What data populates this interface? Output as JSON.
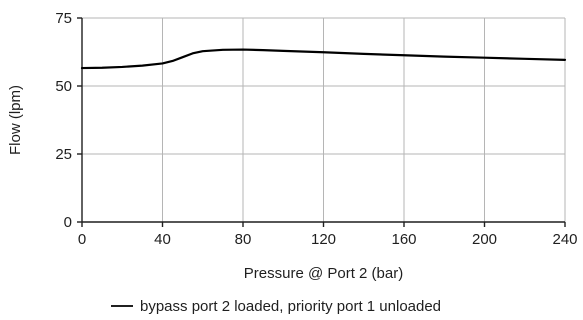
{
  "chart_data": {
    "type": "line",
    "title": "",
    "xlabel": "Pressure @ Port 2 (bar)",
    "ylabel": "Flow (lpm)",
    "xlim": [
      0,
      240
    ],
    "ylim": [
      0,
      75
    ],
    "x_ticks": [
      0,
      40,
      80,
      120,
      160,
      200,
      240
    ],
    "y_ticks": [
      0,
      25,
      50,
      75
    ],
    "x_tick_labels": [
      "0",
      "40",
      "80",
      "120",
      "160",
      "200",
      "240"
    ],
    "y_tick_labels": [
      "0",
      "25",
      "50",
      "75"
    ],
    "grid": true,
    "legend_position": "bottom",
    "series": [
      {
        "name": "bypass port 2 loaded, priority port 1 unloaded",
        "color": "#000000",
        "x": [
          0,
          10,
          20,
          30,
          40,
          45,
          50,
          55,
          60,
          70,
          80,
          90,
          100,
          120,
          140,
          160,
          180,
          200,
          220,
          240
        ],
        "y": [
          56.6,
          56.7,
          57.0,
          57.5,
          58.3,
          59.2,
          60.6,
          62.0,
          62.8,
          63.3,
          63.4,
          63.2,
          62.9,
          62.4,
          61.8,
          61.3,
          60.8,
          60.4,
          60.0,
          59.6
        ]
      }
    ]
  }
}
